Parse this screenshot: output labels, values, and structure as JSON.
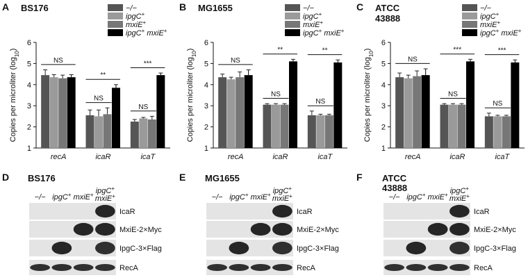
{
  "panel_letters": [
    "A",
    "B",
    "C",
    "D",
    "E",
    "F"
  ],
  "legend_groups": [
    "−/−",
    "ipgC+",
    "mxiE+",
    "ipgC+ mxiE+"
  ],
  "colors": [
    "#555555",
    "#9a9a9a",
    "#777777",
    "#000000"
  ],
  "chart_data": [
    {
      "type": "bar",
      "strain": "BS176",
      "ylabel": "Copies per microliter (log10)",
      "ylim": [
        1,
        6
      ],
      "yticks": [
        1,
        2,
        3,
        4,
        5,
        6
      ],
      "categories": [
        "recA",
        "icaR",
        "icaT"
      ],
      "series": [
        {
          "name": "−/−",
          "values": [
            4.45,
            2.55,
            2.25
          ],
          "errors": [
            0.25,
            0.25,
            0.1
          ]
        },
        {
          "name": "ipgC+",
          "values": [
            4.35,
            2.5,
            2.4
          ],
          "errors": [
            0.12,
            0.3,
            0.05
          ]
        },
        {
          "name": "mxiE+",
          "values": [
            4.3,
            2.6,
            2.35
          ],
          "errors": [
            0.15,
            0.3,
            0.15
          ]
        },
        {
          "name": "ipgC+ mxiE+",
          "values": [
            4.35,
            3.85,
            4.45
          ],
          "errors": [
            0.12,
            0.15,
            0.1
          ]
        }
      ],
      "annotations": [
        {
          "text": "NS",
          "category": 0,
          "from": 0,
          "to": 3
        },
        {
          "text": "NS",
          "category": 1,
          "from": 0,
          "to": 2
        },
        {
          "text": "**",
          "category": 1,
          "from": 0,
          "to": 3
        },
        {
          "text": "NS",
          "category": 2,
          "from": 0,
          "to": 2
        },
        {
          "text": "***",
          "category": 2,
          "from": 0,
          "to": 3
        }
      ]
    },
    {
      "type": "bar",
      "strain": "MG1655",
      "ylabel": "Copies per microliter (log10)",
      "ylim": [
        1,
        6
      ],
      "yticks": [
        1,
        2,
        3,
        4,
        5,
        6
      ],
      "categories": [
        "recA",
        "icaR",
        "icaT"
      ],
      "series": [
        {
          "name": "−/−",
          "values": [
            4.35,
            3.05,
            2.55
          ],
          "errors": [
            0.15,
            0.05,
            0.2
          ]
        },
        {
          "name": "ipgC+",
          "values": [
            4.25,
            3.05,
            2.55
          ],
          "errors": [
            0.1,
            0.05,
            0.05
          ]
        },
        {
          "name": "mxiE+",
          "values": [
            4.35,
            3.05,
            2.55
          ],
          "errors": [
            0.25,
            0.05,
            0.05
          ]
        },
        {
          "name": "ipgC+ mxiE+",
          "values": [
            4.45,
            5.1,
            5.05
          ],
          "errors": [
            0.25,
            0.1,
            0.12
          ]
        }
      ],
      "annotations": [
        {
          "text": "NS",
          "category": 0,
          "from": 0,
          "to": 3
        },
        {
          "text": "NS",
          "category": 1,
          "from": 0,
          "to": 2
        },
        {
          "text": "**",
          "category": 1,
          "from": 0,
          "to": 3
        },
        {
          "text": "NS",
          "category": 2,
          "from": 0,
          "to": 2
        },
        {
          "text": "**",
          "category": 2,
          "from": 0,
          "to": 3
        }
      ]
    },
    {
      "type": "bar",
      "strain": "ATCC 43888",
      "ylabel": "Copies per microliter (log10)",
      "ylim": [
        1,
        6
      ],
      "yticks": [
        1,
        2,
        3,
        4,
        5,
        6
      ],
      "categories": [
        "recA",
        "icaR",
        "icaT"
      ],
      "series": [
        {
          "name": "−/−",
          "values": [
            4.35,
            3.05,
            2.5
          ],
          "errors": [
            0.2,
            0.05,
            0.15
          ]
        },
        {
          "name": "ipgC+",
          "values": [
            4.3,
            3.05,
            2.5
          ],
          "errors": [
            0.15,
            0.05,
            0.05
          ]
        },
        {
          "name": "mxiE+",
          "values": [
            4.4,
            3.05,
            2.5
          ],
          "errors": [
            0.25,
            0.05,
            0.05
          ]
        },
        {
          "name": "ipgC+ mxiE+",
          "values": [
            4.45,
            5.1,
            5.05
          ],
          "errors": [
            0.3,
            0.1,
            0.12
          ]
        }
      ],
      "annotations": [
        {
          "text": "NS",
          "category": 0,
          "from": 0,
          "to": 3
        },
        {
          "text": "NS",
          "category": 1,
          "from": 0,
          "to": 2
        },
        {
          "text": "***",
          "category": 1,
          "from": 0,
          "to": 3
        },
        {
          "text": "NS",
          "category": 2,
          "from": 0,
          "to": 2
        },
        {
          "text": "***",
          "category": 2,
          "from": 0,
          "to": 3
        }
      ]
    }
  ],
  "blots": [
    {
      "strain": "BS176",
      "lanes": [
        "−/−",
        "ipgC+",
        "mxiE+",
        "ipgC+ mxiE+"
      ],
      "rows": [
        {
          "label": "IcaR",
          "signal": [
            0.0,
            0.0,
            0.0,
            0.9
          ]
        },
        {
          "label": "MxiE-2×Myc",
          "signal": [
            0.0,
            0.0,
            0.9,
            0.9
          ]
        },
        {
          "label": "IpgC-3×Flag",
          "signal": [
            0.0,
            0.9,
            0.0,
            0.85
          ]
        },
        {
          "label": "RecA",
          "signal": [
            0.85,
            0.85,
            0.85,
            0.85
          ]
        }
      ]
    },
    {
      "strain": "MG1655",
      "lanes": [
        "−/−",
        "ipgC+",
        "mxiE+",
        "ipgC+ mxiE+"
      ],
      "rows": [
        {
          "label": "IcaR",
          "signal": [
            0.0,
            0.0,
            0.0,
            0.9
          ]
        },
        {
          "label": "MxiE-2×Myc",
          "signal": [
            0.0,
            0.0,
            0.9,
            0.9
          ]
        },
        {
          "label": "IpgC-3×Flag",
          "signal": [
            0.0,
            0.9,
            0.0,
            0.85
          ]
        },
        {
          "label": "RecA",
          "signal": [
            0.85,
            0.85,
            0.85,
            0.85
          ]
        }
      ]
    },
    {
      "strain": "ATCC 43888",
      "lanes": [
        "−/−",
        "ipgC+",
        "mxiE+",
        "ipgC+ mxiE+"
      ],
      "rows": [
        {
          "label": "IcaR",
          "signal": [
            0.0,
            0.0,
            0.0,
            0.9
          ]
        },
        {
          "label": "MxiE-2×Myc",
          "signal": [
            0.0,
            0.0,
            0.9,
            0.9
          ]
        },
        {
          "label": "IpgC-3×Flag",
          "signal": [
            0.0,
            0.9,
            0.0,
            0.85
          ]
        },
        {
          "label": "RecA",
          "signal": [
            0.85,
            0.85,
            0.85,
            0.85
          ]
        }
      ]
    }
  ]
}
